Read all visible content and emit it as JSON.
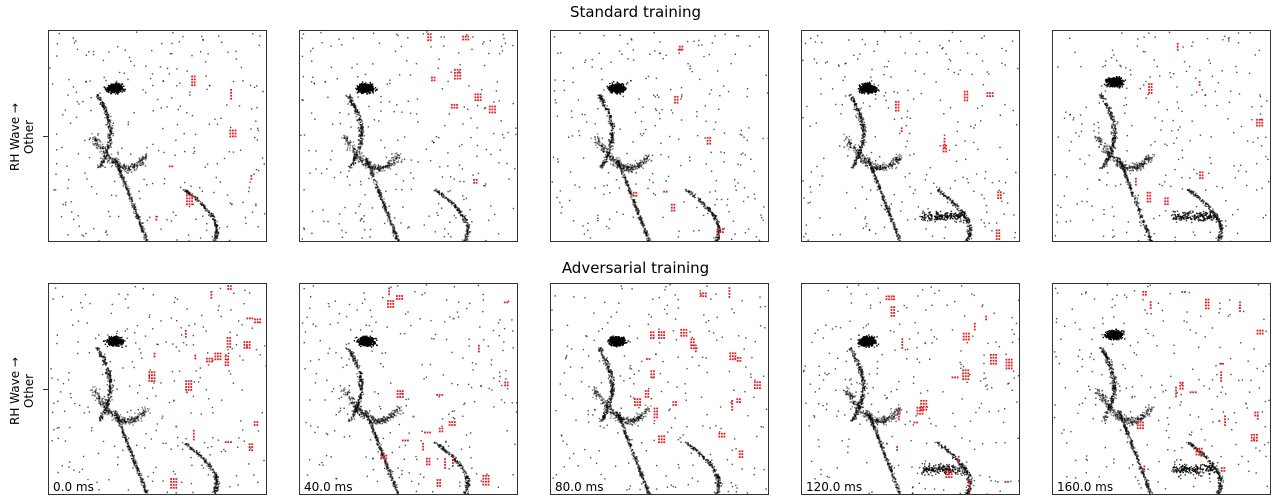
{
  "rows": [
    {
      "title": "Standard training",
      "ylabel_line1": "RH Wave →",
      "ylabel_line2": "Other"
    },
    {
      "title": "Adversarial training",
      "ylabel_line1": "RH Wave →",
      "ylabel_line2": "Other"
    }
  ],
  "time_labels": [
    "0.0 ms",
    "40.0 ms",
    "80.0 ms",
    "120.0 ms",
    "160.0 ms"
  ],
  "colors": {
    "events": "#000000",
    "perturbation": "#e8191c",
    "frame": "#333333"
  }
}
